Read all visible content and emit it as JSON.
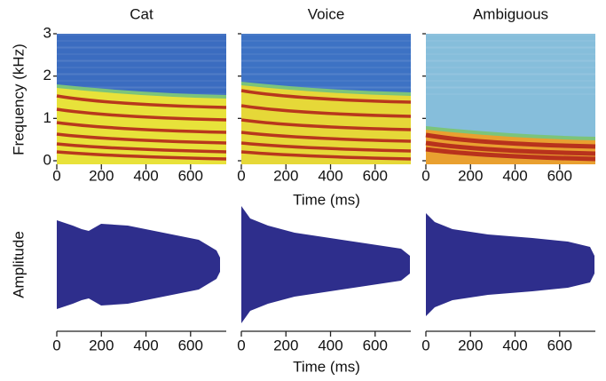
{
  "panels": [
    {
      "title": "Cat"
    },
    {
      "title": "Voice"
    },
    {
      "title": "Ambiguous"
    }
  ],
  "spectrogram": {
    "ylabel": "Frequency (kHz)",
    "ylim": [
      0,
      3
    ],
    "yticks": [
      0,
      1,
      2,
      3
    ],
    "xlim": [
      0,
      760
    ],
    "xticks": [
      0,
      200,
      400,
      600
    ],
    "xlabel": "Time (ms)"
  },
  "waveform": {
    "ylabel": "Amplitude",
    "xlim": [
      0,
      760
    ],
    "xticks": [
      0,
      200,
      400,
      600
    ],
    "xlabel": "Time (ms)"
  }
}
